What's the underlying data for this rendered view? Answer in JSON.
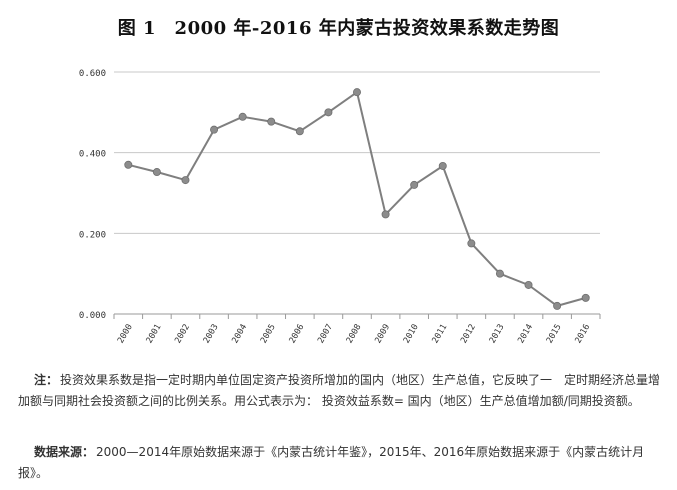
{
  "chart_data": {
    "type": "line",
    "title": "图 1　2000 年-2016 年内蒙古投资效果系数走势图",
    "categories": [
      "2000",
      "2001",
      "2002",
      "2003",
      "2004",
      "2005",
      "2006",
      "2007",
      "2008",
      "2009",
      "2010",
      "2011",
      "2012",
      "2013",
      "2014",
      "2015",
      "2016"
    ],
    "series": [
      {
        "values": [
          0.37,
          0.352,
          0.332,
          0.457,
          0.489,
          0.477,
          0.453,
          0.5,
          0.55,
          0.247,
          0.32,
          0.367,
          0.175,
          0.1,
          0.072,
          0.02,
          0.04
        ]
      }
    ],
    "ylim": [
      0,
      0.6
    ],
    "yticks": [
      "0.000",
      "0.200",
      "0.400",
      "0.600"
    ],
    "grid": true,
    "legend": "none",
    "line_color": "#7f7f7f",
    "marker_color": "#8c8c8c"
  },
  "notes": {
    "note_label": "注：",
    "note_text": "投资效果系数是指一定时期内单位固定资产投资所增加的国内（地区）生产总值，它反映了一　定时期经济总量增加额与同期社会投资额之间的比例关系。用公式表示为： 投资效益系数= 国内（地区）生产总值增加额/同期投资额。",
    "source_label": "数据来源：",
    "source_text": "2000—2014年原始数据来源于《内蒙古统计年鉴》，2015年、2016年原始数据来源于《内蒙古统计月报》。"
  }
}
